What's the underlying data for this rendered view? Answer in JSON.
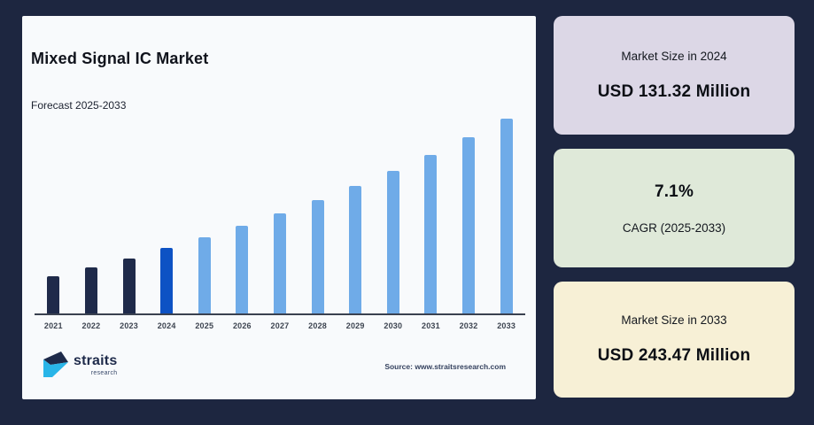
{
  "page": {
    "background": "#1d2640",
    "panel_background": "#f8fafc"
  },
  "panel": {
    "title": "Mixed Signal IC Market",
    "subtitle": "Forecast 2025-2033",
    "source": "Source: www.straitsresearch.com",
    "logo": {
      "name": "straits",
      "sub": "research",
      "dark": "#1e2a4a",
      "cyan": "#29b5e8"
    }
  },
  "chart_data": {
    "type": "bar",
    "title": "Mixed Signal IC Market",
    "subtitle": "Forecast 2025-2033",
    "unit": "USD Million",
    "categories": [
      2021,
      2022,
      2023,
      2024,
      2025,
      2026,
      2027,
      2028,
      2029,
      2030,
      2031,
      2032,
      2033
    ],
    "values": [
      106.87,
      114.46,
      122.58,
      131.32,
      140.64,
      150.63,
      161.32,
      172.78,
      185.04,
      198.18,
      212.25,
      227.32,
      243.47
    ],
    "known_values": {
      "2024": 131.32,
      "2033": 243.47
    },
    "cagr_percent": 7.1,
    "ylim": [
      75,
      245
    ],
    "grid": false,
    "legend": false,
    "axis_color": "#3a4150",
    "colors": {
      "historical": "#1f2a4a",
      "current": "#0d52c4",
      "forecast": "#6fabe8"
    },
    "color_roles": [
      "historical",
      "historical",
      "historical",
      "current",
      "forecast",
      "forecast",
      "forecast",
      "forecast",
      "forecast",
      "forecast",
      "forecast",
      "forecast",
      "forecast"
    ]
  },
  "cards": [
    {
      "label": "Market Size in 2024",
      "value": "USD 131.32 Million",
      "bg": "#dcd7e6"
    },
    {
      "value": "7.1%",
      "label": "CAGR (2025-2033)",
      "bg": "#dfe9d9"
    },
    {
      "label": "Market Size in 2033",
      "value": "USD 243.47 Million",
      "bg": "#f7f0d6"
    }
  ]
}
